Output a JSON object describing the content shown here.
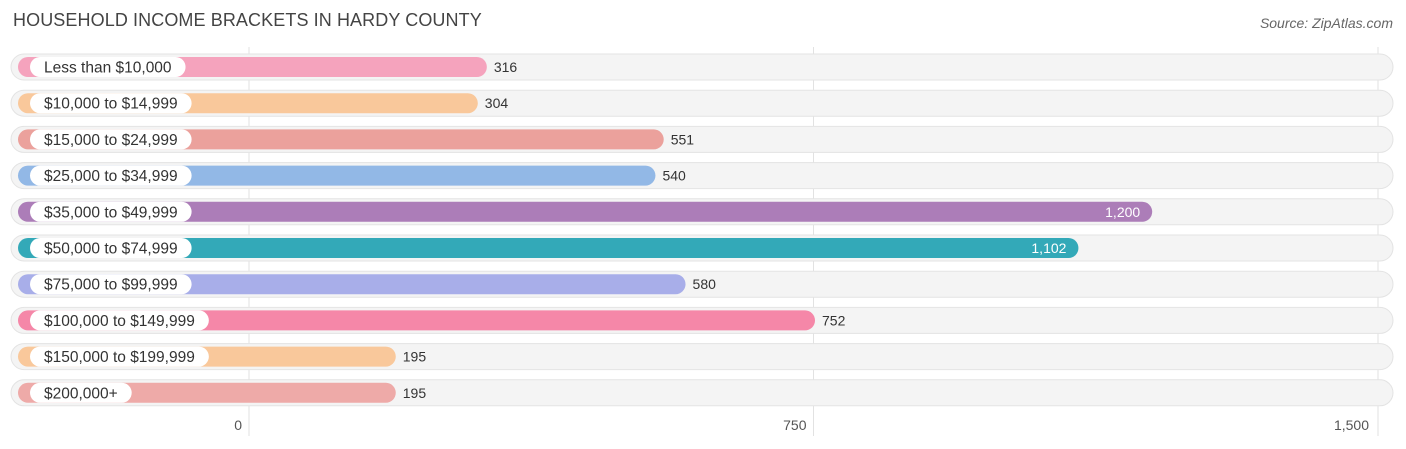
{
  "header": {
    "title": "HOUSEHOLD INCOME BRACKETS IN HARDY COUNTY",
    "source": "Source: ZipAtlas.com"
  },
  "chart_data": {
    "type": "bar",
    "orientation": "horizontal",
    "title": "HOUSEHOLD INCOME BRACKETS IN HARDY COUNTY",
    "categories": [
      "Less than $10,000",
      "$10,000 to $14,999",
      "$15,000 to $24,999",
      "$25,000 to $34,999",
      "$35,000 to $49,999",
      "$50,000 to $74,999",
      "$75,000 to $99,999",
      "$100,000 to $149,999",
      "$150,000 to $199,999",
      "$200,000+"
    ],
    "values": [
      316,
      304,
      551,
      540,
      1200,
      1102,
      580,
      752,
      195,
      195
    ],
    "value_labels": [
      "316",
      "304",
      "551",
      "540",
      "1,200",
      "1,102",
      "580",
      "752",
      "195",
      "195"
    ],
    "colors": [
      "#f5a3bd",
      "#f9c89b",
      "#eba19c",
      "#92b8e6",
      "#ac7db8",
      "#33a9b8",
      "#a8aee9",
      "#f587a8",
      "#f9c89b",
      "#eeaaa8"
    ],
    "xlim": [
      0,
      1500
    ],
    "xticks": [
      0,
      750,
      1500
    ],
    "xtick_labels": [
      "0",
      "750",
      "1,500"
    ],
    "grid": true
  }
}
